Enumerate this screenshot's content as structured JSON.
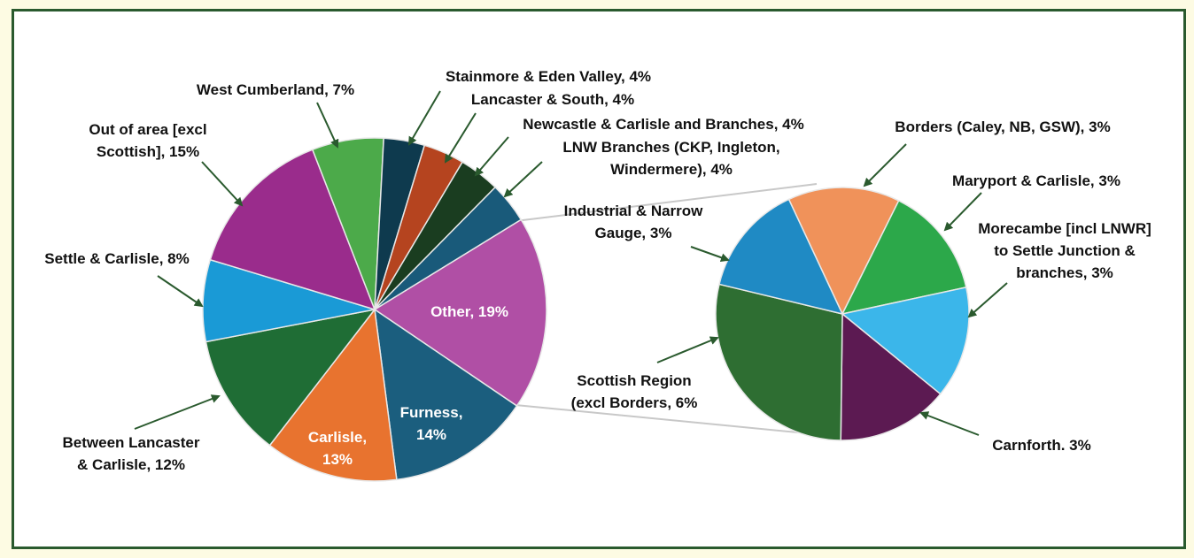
{
  "chart_data": {
    "type": "pie",
    "subtype": "pie-of-pie",
    "colors": {
      "border": "#2a5a2e",
      "background": "#fdfbe3",
      "arrow": "#2a5a2e",
      "connector": "#c8c8c8"
    },
    "main": {
      "slices": [
        {
          "name": "Other",
          "value": 19,
          "label": [
            "Other, 19%"
          ],
          "color": "#b04fa5",
          "inside": true
        },
        {
          "name": "Furness",
          "value": 14,
          "label": [
            "Furness,",
            "14%"
          ],
          "color": "#1b5e7e",
          "inside": true
        },
        {
          "name": "Carlisle",
          "value": 13,
          "label": [
            "Carlisle,",
            "13%"
          ],
          "color": "#e8732f",
          "inside": true
        },
        {
          "name": "Between Lancaster & Carlisle",
          "value": 12,
          "label": [
            "Between Lancaster",
            "& Carlisle, 12%"
          ],
          "color": "#1f6d35"
        },
        {
          "name": "Settle & Carlisle",
          "value": 8,
          "label": [
            "Settle & Carlisle, 8%"
          ],
          "color": "#1a9ad6"
        },
        {
          "name": "Out of area [excl Scottish]",
          "value": 15,
          "label": [
            "Out of area [excl",
            "Scottish], 15%"
          ],
          "color": "#9a2c8c"
        },
        {
          "name": "West Cumberland",
          "value": 7,
          "label": [
            "West Cumberland, 7%"
          ],
          "color": "#4caa4a"
        },
        {
          "name": "Stainmore & Eden Valley",
          "value": 4,
          "label": [
            "Stainmore & Eden Valley, 4%"
          ],
          "color": "#0e3a4e"
        },
        {
          "name": "Lancaster & South",
          "value": 4,
          "label": [
            "Lancaster & South, 4%"
          ],
          "color": "#b5441f"
        },
        {
          "name": "Newcastle & Carlisle and Branches",
          "value": 4,
          "label": [
            "Newcastle & Carlisle and Branches, 4%"
          ],
          "color": "#1a3d20"
        },
        {
          "name": "LNW Branches (CKP, Ingleton, Windermere)",
          "value": 4,
          "label": [
            "LNW Branches (CKP, Ingleton,",
            "Windermere), 4%"
          ],
          "color": "#195a7a"
        }
      ]
    },
    "secondary": {
      "slices": [
        {
          "name": "Borders (Caley, NB, GSW)",
          "value": 3,
          "label": [
            "Borders (Caley, NB, GSW), 3%"
          ],
          "color": "#f0925a"
        },
        {
          "name": "Maryport & Carlisle",
          "value": 3,
          "label": [
            "Maryport & Carlisle, 3%"
          ],
          "color": "#2ca84a"
        },
        {
          "name": "Morecambe [incl LNWR] to Settle Junction & branches",
          "value": 3,
          "label": [
            "Morecambe [incl LNWR]",
            "to Settle Junction &",
            "branches, 3%"
          ],
          "color": "#3bb6ea"
        },
        {
          "name": "Carnforth",
          "value": 3,
          "label": [
            "Carnforth. 3%"
          ],
          "color": "#5c1a52"
        },
        {
          "name": "Scottish Region (excl Borders)",
          "value": 6,
          "label": [
            "Scottish Region",
            "(excl Borders, 6%"
          ],
          "color": "#2e6e32"
        },
        {
          "name": "Industrial & Narrow Gauge",
          "value": 3,
          "label": [
            "Industrial & Narrow",
            "Gauge, 3%"
          ],
          "color": "#1f8ac4"
        }
      ]
    }
  }
}
